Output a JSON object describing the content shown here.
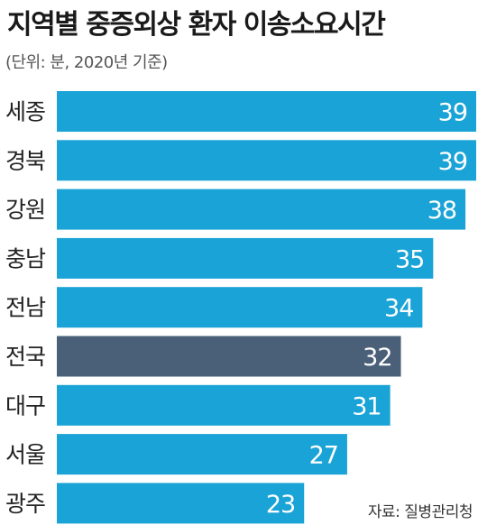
{
  "title": "지역별 중증외상 환자 이송소요시간",
  "subtitle": "(단위: 분, 2020년 기준)",
  "source": "자료: 질병관리청",
  "colors": {
    "bar": "#1aa3d6",
    "highlight": "#4a6078"
  },
  "chart_data": {
    "type": "bar",
    "orientation": "horizontal",
    "title": "지역별 중증외상 환자 이송소요시간",
    "unit": "분",
    "categories": [
      "세종",
      "경북",
      "강원",
      "충남",
      "전남",
      "전국",
      "대구",
      "서울",
      "광주"
    ],
    "values": [
      39,
      39,
      38,
      35,
      34,
      32,
      31,
      27,
      23
    ],
    "highlight": "전국",
    "xlim": [
      0,
      39
    ],
    "grid": false,
    "data_labels": true
  }
}
